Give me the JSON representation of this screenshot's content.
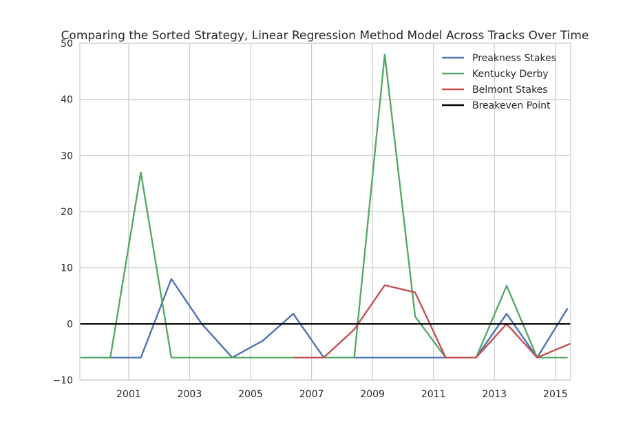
{
  "chart_data": {
    "type": "line",
    "title": "Comparing the Sorted Strategy, Linear Regression Method Model Across Tracks Over Time",
    "xlabel": "",
    "ylabel": "",
    "xlim": [
      1999.4,
      2015.5
    ],
    "ylim": [
      -10,
      50
    ],
    "xticks": [
      2001,
      2003,
      2005,
      2007,
      2009,
      2011,
      2013,
      2015
    ],
    "yticks": [
      -10,
      0,
      10,
      20,
      30,
      40,
      50
    ],
    "grid": true,
    "legend_position": "top-right",
    "series": [
      {
        "name": "Preakness Stakes",
        "color": "#4c72b0",
        "x": [
          1999.4,
          2000.4,
          2001.4,
          2002.4,
          2003.4,
          2004.4,
          2005.4,
          2006.4,
          2007.4,
          2008.4,
          2009.4,
          2010.4,
          2011.4,
          2012.4,
          2013.4,
          2014.4,
          2015.4
        ],
        "y": [
          -6,
          -6,
          -6,
          8,
          0,
          -6,
          -3,
          1.8,
          -6,
          -6,
          -6,
          -6,
          -6,
          -6,
          1.8,
          -6,
          2.8
        ]
      },
      {
        "name": "Kentucky Derby",
        "color": "#55a868",
        "x": [
          1999.4,
          2000.4,
          2001.4,
          2002.4,
          2003.4,
          2004.4,
          2005.4,
          2006.4,
          2007.4,
          2008.4,
          2009.4,
          2010.4,
          2011.4,
          2012.4,
          2013.4,
          2014.4,
          2015.4
        ],
        "y": [
          -6,
          -6,
          27,
          -6,
          -6,
          -6,
          -6,
          -6,
          -6,
          -6,
          48,
          1.3,
          -6,
          -6,
          6.8,
          -6,
          -6
        ]
      },
      {
        "name": "Belmont Stakes",
        "color": "#c44e52",
        "x": [
          2006.4,
          2007.4,
          2008.4,
          2009.4,
          2010.4,
          2011.4,
          2012.4,
          2013.4,
          2014.4,
          2015.5
        ],
        "y": [
          -6,
          -6,
          -1,
          6.9,
          5.6,
          -6,
          -6,
          0,
          -6,
          -3.5
        ]
      },
      {
        "name": "Breakeven Point",
        "color": "#000000",
        "x": [
          1999.4,
          2015.5
        ],
        "y": [
          0,
          0
        ]
      }
    ]
  }
}
